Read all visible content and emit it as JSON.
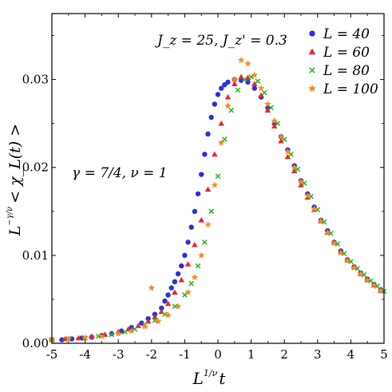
{
  "chart_data": {
    "type": "scatter",
    "xlim": [
      -5,
      5
    ],
    "ylim": [
      0,
      0.0375
    ],
    "x_ticks": [
      "-5",
      "-4",
      "-3",
      "-2",
      "-1",
      "0",
      "1",
      "2",
      "3",
      "4",
      "5"
    ],
    "y_ticks": [
      "0.00",
      "0.01",
      "0.02",
      "0.03"
    ],
    "x_tick_values": [
      -5,
      -4,
      -3,
      -2,
      -1,
      0,
      1,
      2,
      3,
      4,
      5
    ],
    "y_tick_values": [
      0,
      0.01,
      0.02,
      0.03
    ],
    "xlabel_base": "L",
    "xlabel_exp": "1/ν",
    "xlabel_tail": "t",
    "ylabel_base": "L",
    "ylabel_exp": "−γ/ν",
    "ylabel_tail": "< χ_L(t) >",
    "annotations": [
      "J_z = 25, J_z' = 0.3",
      "γ = 7/4, ν = 1"
    ],
    "legend_position": "top-right",
    "grid": false,
    "series": [
      {
        "name": "L = 40",
        "marker": "circle",
        "color": "#2b2fe0",
        "points": [
          [
            -5.0,
            0.0004
          ],
          [
            -4.7,
            0.0004
          ],
          [
            -4.4,
            0.0005
          ],
          [
            -4.1,
            0.0006
          ],
          [
            -3.8,
            0.0007
          ],
          [
            -3.5,
            0.0009
          ],
          [
            -3.2,
            0.0011
          ],
          [
            -2.9,
            0.0014
          ],
          [
            -2.6,
            0.0018
          ],
          [
            -2.3,
            0.0023
          ],
          [
            -2.1,
            0.0028
          ],
          [
            -1.9,
            0.0033
          ],
          [
            -1.7,
            0.004
          ],
          [
            -1.6,
            0.0048
          ],
          [
            -1.5,
            0.0055
          ],
          [
            -1.4,
            0.0063
          ],
          [
            -1.3,
            0.007
          ],
          [
            -1.2,
            0.0079
          ],
          [
            -1.1,
            0.0088
          ],
          [
            -1.0,
            0.01
          ],
          [
            -0.9,
            0.0115
          ],
          [
            -0.8,
            0.0132
          ],
          [
            -0.7,
            0.015
          ],
          [
            -0.6,
            0.017
          ],
          [
            -0.5,
            0.0192
          ],
          [
            -0.4,
            0.0215
          ],
          [
            -0.3,
            0.0238
          ],
          [
            -0.2,
            0.0257
          ],
          [
            -0.1,
            0.0272
          ],
          [
            0.0,
            0.0283
          ],
          [
            0.1,
            0.029
          ],
          [
            0.2,
            0.0294
          ],
          [
            0.3,
            0.0297
          ],
          [
            0.5,
            0.03
          ],
          [
            0.7,
            0.0299
          ],
          [
            0.9,
            0.0297
          ],
          [
            1.1,
            0.029
          ],
          [
            1.3,
            0.028
          ],
          [
            1.5,
            0.0268
          ],
          [
            1.7,
            0.025
          ],
          [
            1.9,
            0.0235
          ],
          [
            2.1,
            0.022
          ],
          [
            2.3,
            0.0202
          ],
          [
            2.5,
            0.0185
          ],
          [
            2.7,
            0.017
          ],
          [
            2.9,
            0.0155
          ],
          [
            3.1,
            0.014
          ],
          [
            3.3,
            0.0128
          ],
          [
            3.5,
            0.0115
          ],
          [
            3.7,
            0.0105
          ],
          [
            3.9,
            0.0095
          ],
          [
            4.1,
            0.0087
          ],
          [
            4.3,
            0.008
          ],
          [
            4.5,
            0.0073
          ],
          [
            4.7,
            0.0067
          ],
          [
            4.9,
            0.0061
          ]
        ]
      },
      {
        "name": "L = 60",
        "marker": "triangle",
        "color": "#e8262b",
        "points": [
          [
            -5.0,
            0.0004
          ],
          [
            -4.6,
            0.0005
          ],
          [
            -4.2,
            0.0006
          ],
          [
            -3.8,
            0.0008
          ],
          [
            -3.4,
            0.001
          ],
          [
            -3.0,
            0.0013
          ],
          [
            -2.7,
            0.0016
          ],
          [
            -2.4,
            0.002
          ],
          [
            -2.1,
            0.0025
          ],
          [
            -1.9,
            0.003
          ],
          [
            -1.7,
            0.0036
          ],
          [
            -1.5,
            0.0045
          ],
          [
            -1.3,
            0.0058
          ],
          [
            -1.1,
            0.0072
          ],
          [
            -0.9,
            0.009
          ],
          [
            -0.7,
            0.0112
          ],
          [
            -0.5,
            0.014
          ],
          [
            -0.3,
            0.0175
          ],
          [
            -0.1,
            0.0215
          ],
          [
            0.1,
            0.025
          ],
          [
            0.3,
            0.028
          ],
          [
            0.5,
            0.0295
          ],
          [
            0.7,
            0.0303
          ],
          [
            0.9,
            0.0302
          ],
          [
            1.1,
            0.0295
          ],
          [
            1.3,
            0.0282
          ],
          [
            1.5,
            0.0265
          ],
          [
            1.7,
            0.0247
          ],
          [
            1.9,
            0.023
          ],
          [
            2.1,
            0.0212
          ],
          [
            2.3,
            0.0196
          ],
          [
            2.5,
            0.018
          ],
          [
            2.7,
            0.0166
          ],
          [
            2.9,
            0.0152
          ],
          [
            3.1,
            0.0139
          ],
          [
            3.3,
            0.0126
          ],
          [
            3.5,
            0.0115
          ],
          [
            3.7,
            0.0104
          ],
          [
            3.9,
            0.0095
          ],
          [
            4.1,
            0.0087
          ],
          [
            4.3,
            0.0079
          ],
          [
            4.5,
            0.0072
          ],
          [
            4.7,
            0.0066
          ],
          [
            4.9,
            0.006
          ]
        ]
      },
      {
        "name": "L = 80",
        "marker": "x",
        "color": "#2db82d",
        "points": [
          [
            -5.0,
            0.0004
          ],
          [
            -4.5,
            0.0005
          ],
          [
            -4.0,
            0.0006
          ],
          [
            -3.6,
            0.0008
          ],
          [
            -3.2,
            0.001
          ],
          [
            -2.8,
            0.0013
          ],
          [
            -2.5,
            0.0016
          ],
          [
            -2.2,
            0.0021
          ],
          [
            -1.9,
            0.0026
          ],
          [
            -1.6,
            0.0033
          ],
          [
            -1.3,
            0.0042
          ],
          [
            -1.0,
            0.0055
          ],
          [
            -0.8,
            0.0068
          ],
          [
            -0.6,
            0.0088
          ],
          [
            -0.4,
            0.0115
          ],
          [
            -0.2,
            0.015
          ],
          [
            0.0,
            0.019
          ],
          [
            0.2,
            0.0232
          ],
          [
            0.4,
            0.0265
          ],
          [
            0.6,
            0.0288
          ],
          [
            0.8,
            0.03
          ],
          [
            1.0,
            0.0303
          ],
          [
            1.2,
            0.0298
          ],
          [
            1.4,
            0.0285
          ],
          [
            1.6,
            0.0268
          ],
          [
            1.8,
            0.025
          ],
          [
            2.0,
            0.0232
          ],
          [
            2.2,
            0.0215
          ],
          [
            2.4,
            0.0198
          ],
          [
            2.6,
            0.0182
          ],
          [
            2.8,
            0.0167
          ],
          [
            3.0,
            0.0152
          ],
          [
            3.2,
            0.0138
          ],
          [
            3.4,
            0.0125
          ],
          [
            3.6,
            0.0113
          ],
          [
            3.8,
            0.0102
          ],
          [
            4.0,
            0.0093
          ],
          [
            4.2,
            0.0085
          ],
          [
            4.4,
            0.0078
          ],
          [
            4.6,
            0.0071
          ],
          [
            4.8,
            0.0065
          ],
          [
            5.0,
            0.0059
          ]
        ]
      },
      {
        "name": "L = 100",
        "marker": "star",
        "color": "#f28c1e",
        "points": [
          [
            -5.0,
            0.0004
          ],
          [
            -4.5,
            0.0005
          ],
          [
            -4.0,
            0.0006
          ],
          [
            -3.5,
            0.0008
          ],
          [
            -3.0,
            0.0011
          ],
          [
            -2.6,
            0.0014
          ],
          [
            -2.2,
            0.0019
          ],
          [
            -2.0,
            0.0063
          ],
          [
            -1.8,
            0.0025
          ],
          [
            -1.5,
            0.0032
          ],
          [
            -1.2,
            0.0042
          ],
          [
            -0.9,
            0.0058
          ],
          [
            -0.7,
            0.0075
          ],
          [
            -0.5,
            0.01
          ],
          [
            -0.3,
            0.0135
          ],
          [
            -0.1,
            0.018
          ],
          [
            0.1,
            0.0228
          ],
          [
            0.3,
            0.027
          ],
          [
            0.5,
            0.03
          ],
          [
            0.7,
            0.0322
          ],
          [
            0.9,
            0.0318
          ],
          [
            1.1,
            0.0305
          ],
          [
            1.3,
            0.029
          ],
          [
            1.5,
            0.0272
          ],
          [
            1.7,
            0.0253
          ],
          [
            1.9,
            0.0235
          ],
          [
            2.1,
            0.0218
          ],
          [
            2.3,
            0.02
          ],
          [
            2.5,
            0.0184
          ],
          [
            2.7,
            0.0168
          ],
          [
            2.9,
            0.0153
          ],
          [
            3.1,
            0.0139
          ],
          [
            3.3,
            0.0126
          ],
          [
            3.5,
            0.0114
          ],
          [
            3.7,
            0.0103
          ],
          [
            3.9,
            0.0094
          ],
          [
            4.1,
            0.0086
          ],
          [
            4.3,
            0.0079
          ],
          [
            4.5,
            0.0072
          ],
          [
            4.7,
            0.0066
          ],
          [
            4.9,
            0.006
          ]
        ]
      }
    ]
  }
}
